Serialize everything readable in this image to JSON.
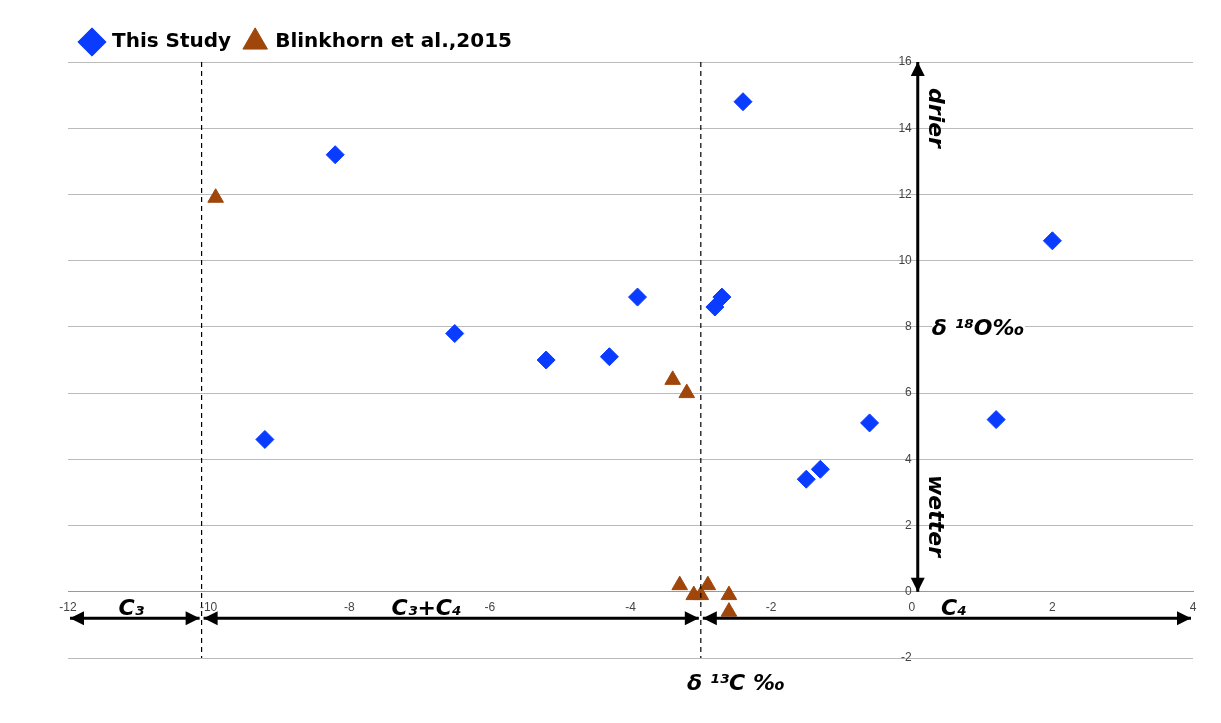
{
  "chart_data": {
    "type": "scatter",
    "xlabel": "δ ¹³C ‰",
    "ylabel": "δ ¹⁸O‰",
    "xlim": [
      -12,
      4
    ],
    "xticks": [
      -12,
      -10,
      -8,
      -6,
      -4,
      -2,
      0,
      2,
      4
    ],
    "ylim": [
      -2,
      16
    ],
    "yticks": [
      -2,
      0,
      2,
      4,
      6,
      8,
      10,
      12,
      14,
      16
    ],
    "grid": "y",
    "legend": "top left",
    "series": [
      {
        "name": "This Study",
        "color": "#0a3cff",
        "marker": "diamond",
        "x": [
          -9.2,
          -8.2,
          -6.5,
          -5.2,
          -4.3,
          -3.9,
          -2.8,
          -2.7,
          -2.4,
          -1.5,
          -1.3,
          -0.6,
          1.2,
          2.0
        ],
        "values": [
          4.6,
          13.2,
          7.8,
          7.0,
          7.1,
          8.9,
          8.6,
          8.9,
          14.8,
          3.4,
          3.7,
          5.1,
          5.2,
          10.6
        ]
      },
      {
        "name": "Blinkhorn et al.,2015",
        "color": "#a0460a",
        "marker": "triangle",
        "x": [
          -9.9,
          -3.4,
          -3.2,
          -3.3,
          -3.1,
          -3.0,
          -2.9,
          -2.6,
          -2.6
        ],
        "values": [
          11.9,
          6.4,
          6.0,
          0.2,
          -0.1,
          -0.1,
          0.2,
          -0.1,
          -0.6
        ]
      }
    ],
    "ref_lines": [
      {
        "axis": "x",
        "value": -10.1,
        "line_style": "dashed",
        "color": "#000000"
      },
      {
        "axis": "x",
        "value": -3.0,
        "line_style": "dashed",
        "color": "#000000"
      }
    ],
    "annotations": [
      "C₃",
      "C₃+C₄",
      "C₄",
      "drier",
      "wetter"
    ]
  }
}
